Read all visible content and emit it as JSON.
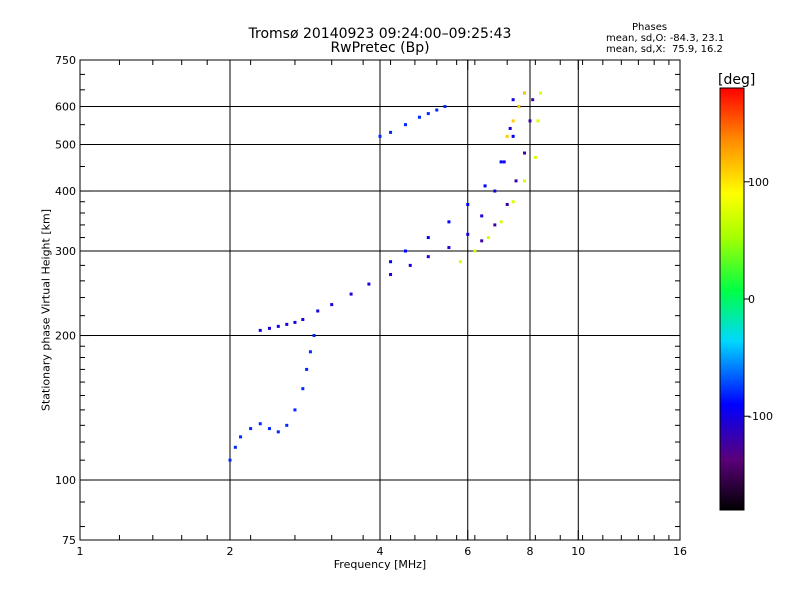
{
  "chart_data": {
    "type": "scatter",
    "title": "Tromsø 20140923 09:24:00–09:25:43",
    "subtitle": "RwPretec (Bp)",
    "xlabel": "Frequency [MHz]",
    "ylabel": "Stationary phase Virtual Height [km]",
    "x_scale": "log",
    "y_scale": "log",
    "xlim": [
      1,
      16
    ],
    "ylim": [
      75,
      750
    ],
    "x_ticks": [
      "1",
      "2",
      "4",
      "6",
      "8",
      "10",
      "16"
    ],
    "y_ticks": [
      "75",
      "100",
      "200",
      "300",
      "400",
      "500",
      "600",
      "750"
    ],
    "grid": true,
    "phase_stats": {
      "title": "Phases",
      "o_line": "mean, sd,O: -84.3, 23.1",
      "x_line": "mean, sd,X:  75.9, 16.2"
    },
    "colorbar": {
      "title": "[deg]",
      "range": [
        -180,
        180
      ],
      "ticks": [
        "100",
        "0",
        "-100"
      ]
    },
    "series": [
      {
        "points": [
          [
            2.3,
            205
          ],
          [
            2.4,
            207
          ],
          [
            2.5,
            209
          ],
          [
            2.6,
            211
          ],
          [
            2.7,
            213
          ],
          [
            2.8,
            216
          ],
          [
            3.0,
            225
          ],
          [
            3.2,
            232
          ],
          [
            3.5,
            244
          ],
          [
            3.8,
            256
          ],
          [
            4.2,
            268
          ],
          [
            4.6,
            280
          ],
          [
            5.0,
            292
          ],
          [
            5.5,
            305
          ],
          [
            6.0,
            325
          ],
          [
            6.4,
            355
          ],
          [
            6.8,
            400
          ],
          [
            7.1,
            460
          ],
          [
            7.3,
            540
          ],
          [
            7.4,
            620
          ]
        ],
        "phase": -100
      },
      {
        "points": [
          [
            2.0,
            110
          ],
          [
            2.05,
            117
          ],
          [
            2.1,
            123
          ],
          [
            2.2,
            128
          ],
          [
            2.3,
            131
          ],
          [
            2.4,
            128
          ],
          [
            2.5,
            126
          ],
          [
            2.6,
            130
          ],
          [
            2.7,
            140
          ],
          [
            2.8,
            155
          ],
          [
            2.85,
            170
          ],
          [
            2.9,
            185
          ],
          [
            2.95,
            200
          ]
        ],
        "phase": -80
      },
      {
        "points": [
          [
            4.0,
            520
          ],
          [
            4.2,
            530
          ],
          [
            4.5,
            550
          ],
          [
            4.8,
            570
          ],
          [
            5.0,
            580
          ],
          [
            5.2,
            590
          ],
          [
            5.4,
            600
          ]
        ],
        "phase": -80
      },
      {
        "points": [
          [
            4.2,
            285
          ],
          [
            4.5,
            300
          ],
          [
            5.0,
            320
          ],
          [
            5.5,
            345
          ],
          [
            6.0,
            375
          ],
          [
            6.5,
            410
          ],
          [
            7.0,
            460
          ],
          [
            7.4,
            520
          ],
          [
            7.6,
            600
          ],
          [
            7.8,
            640
          ]
        ],
        "phase": -90
      },
      {
        "points": [
          [
            6.4,
            315
          ],
          [
            6.8,
            340
          ],
          [
            7.2,
            375
          ],
          [
            7.5,
            420
          ],
          [
            7.8,
            480
          ],
          [
            8.0,
            560
          ],
          [
            8.1,
            620
          ]
        ],
        "phase": -120
      },
      {
        "points": [
          [
            5.8,
            285
          ],
          [
            6.2,
            300
          ],
          [
            6.6,
            320
          ],
          [
            7.0,
            345
          ],
          [
            7.4,
            380
          ],
          [
            7.8,
            420
          ],
          [
            8.2,
            470
          ],
          [
            8.3,
            560
          ],
          [
            8.4,
            640
          ]
        ],
        "phase": 75
      },
      {
        "points": [
          [
            7.2,
            520
          ],
          [
            7.4,
            560
          ],
          [
            7.6,
            600
          ],
          [
            7.8,
            640
          ]
        ],
        "phase": 110
      }
    ]
  }
}
